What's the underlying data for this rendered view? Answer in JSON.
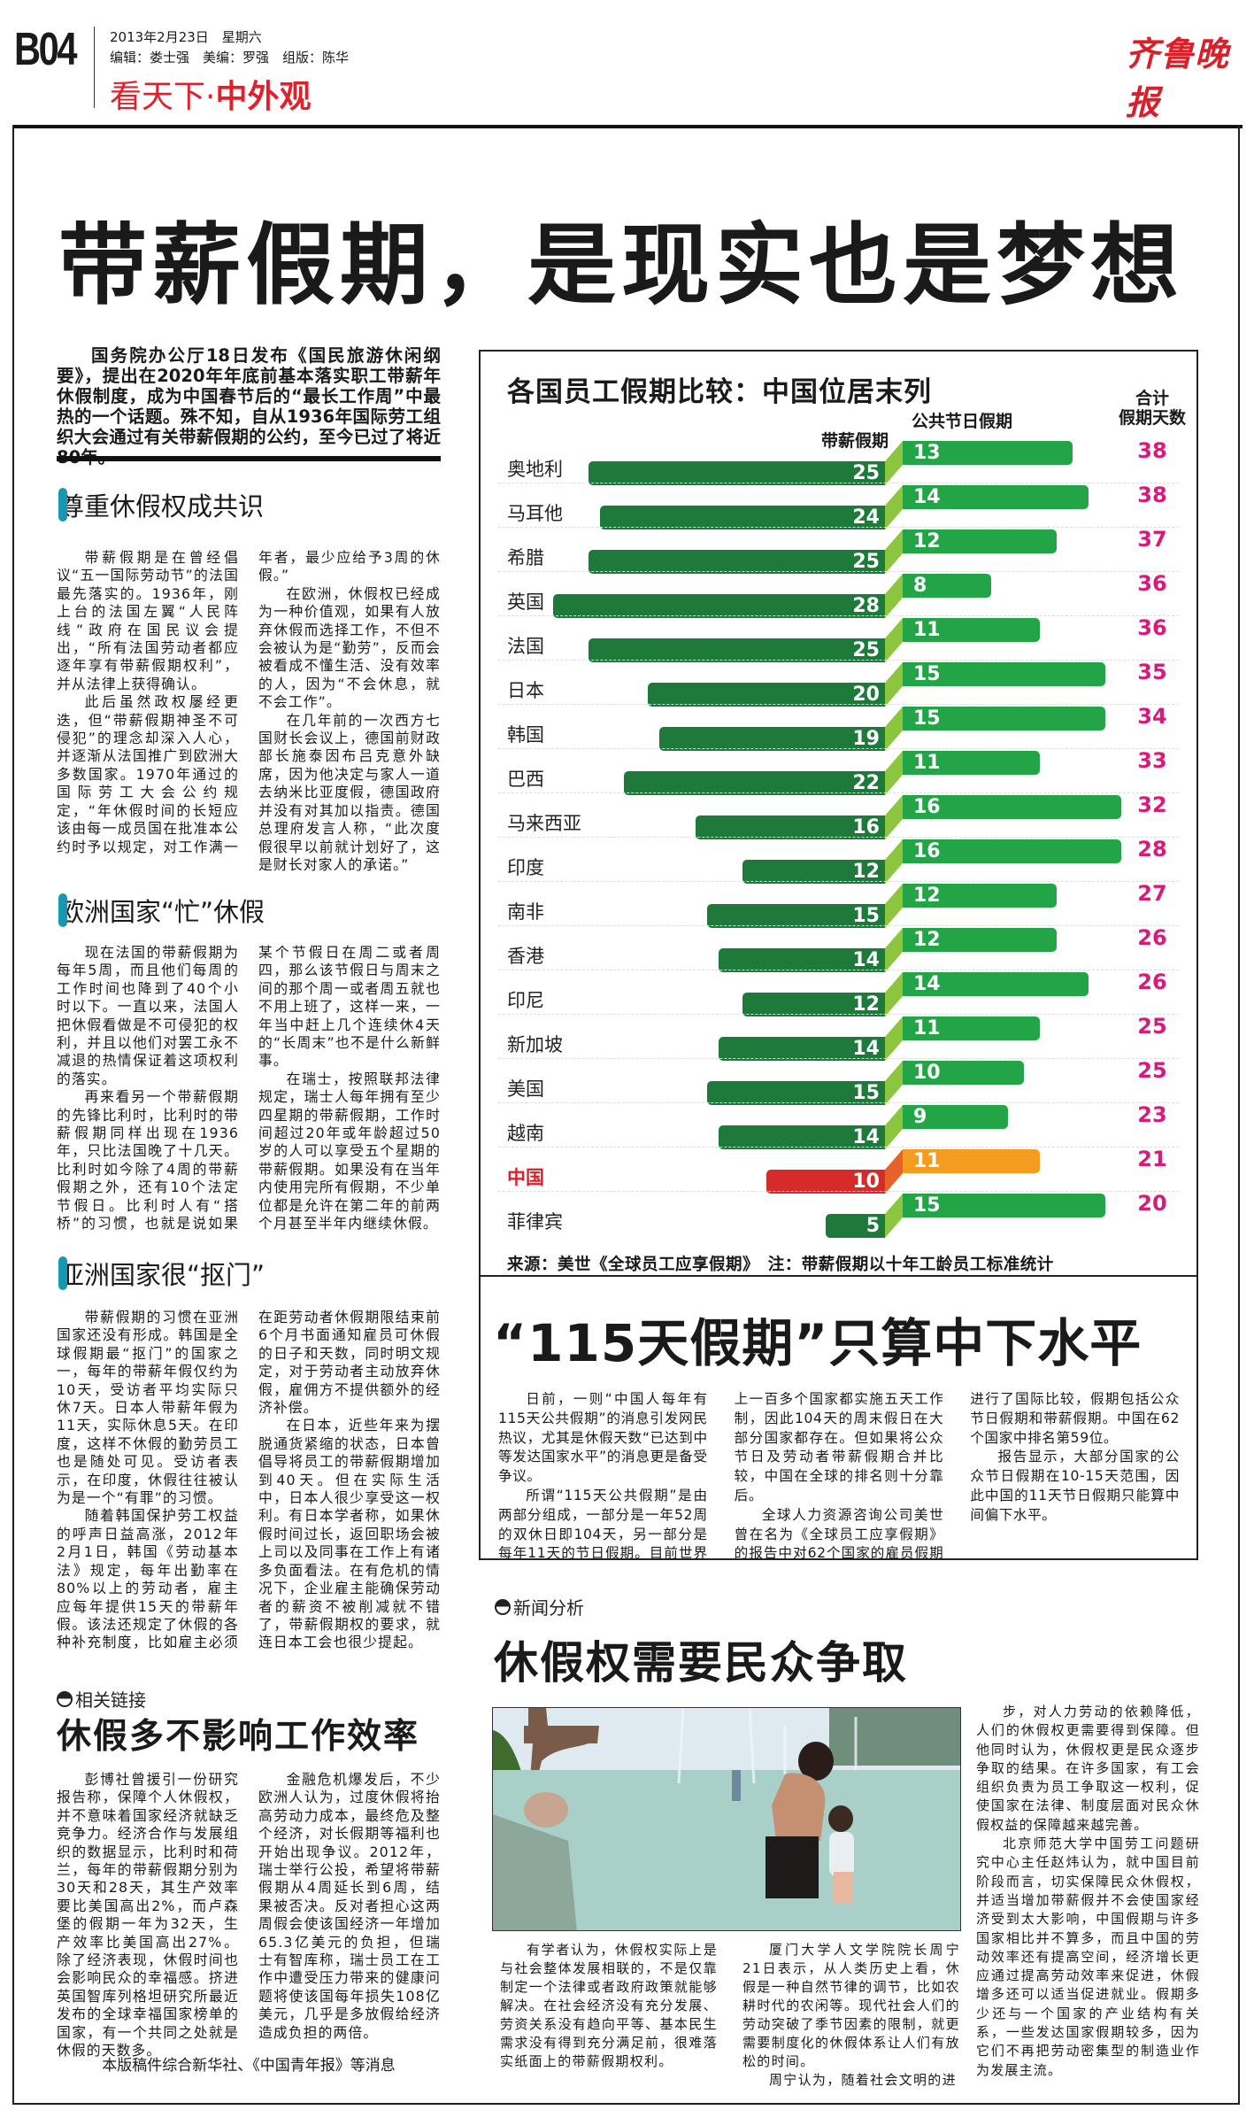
{
  "header": {
    "page_number": "B04",
    "date": "2013年2月23日　星期六",
    "staff": "编辑：娄士强　美编：罗强　组版：陈华",
    "section_plain": "看天下·",
    "section_bold": "中外观",
    "logo": "齐鲁晚报"
  },
  "headline": "带薪假期，是现实也是梦想",
  "lead": "国务院办公厅18日发布《国民旅游休闲纲要》，提出在2020年年底前基本落实职工带薪年休假制度，成为中国春节后的“最长工作周”中最热的一个话题。殊不知，自从1936年国际劳工组织大会通过有关带薪假期的公约，至今已过了将近80年。",
  "sections": [
    {
      "title": "尊重休假权成共识",
      "paragraphs": [
        "带薪假期是在曾经倡议“五一国际劳动节”的法国最先落实的。1936年，刚上台的法国左翼“人民阵线”政府在国民议会提出，“所有法国劳动者都应逐年享有带薪假期权利”，并从法律上获得确认。",
        "此后虽然政权屡经更迭，但“带薪假期神圣不可侵犯”的理念却深入人心，并逐渐从法国推广到欧洲大多数国家。1970年通过的国际劳工大会公约规定，“年休假时间的长短应该由每一成员国在批准本公约时予以规定，对工作满一年者，最少应给予3周的休假。”",
        "在欧洲，休假权已经成为一种价值观，如果有人放弃休假而选择工作，不但不会被认为是“勤劳”，反而会被看成不懂生活、没有效率的人，因为“不会休息，就不会工作”。",
        "在几年前的一次西方七国财长会议上，德国前财政部长施泰因布吕克意外缺席，因为他决定与家人一道去纳米比亚度假，德国政府并没有对其加以指责。德国总理府发言人称，“此次度假很早以前就计划好了，这是财长对家人的承诺。”"
      ]
    },
    {
      "title": "欧洲国家“忙”休假",
      "paragraphs": [
        "现在法国的带薪假期为每年5周，而且他们每周的工作时间也降到了40个小时以下。一直以来，法国人把休假看做是不可侵犯的权利，并且以他们对罢工永不减退的热情保证着这项权利的落实。",
        "再来看另一个带薪假期的先锋比利时，比利时的带薪假期同样出现在1936年，只比法国晚了十几天。比利时如今除了4周的带薪假期之外，还有10个法定节假日。比利时人有“搭桥”的习惯，也就是说如果某个节假日在周二或者周四，那么该节假日与周末之间的那个周一或者周五就也不用上班了，这样一来，一年当中赶上几个连续休4天的“长周末”也不是什么新鲜事。",
        "在瑞士，按照联邦法律规定，瑞士人每年拥有至少四星期的带薪假期，工作时间超过20年或年龄超过50岁的人可以享受五个星期的带薪假期。如果没有在当年内使用完所有假期，不少单位都是允许在第二年的前两个月甚至半年内继续休假。"
      ]
    },
    {
      "title": "亚洲国家很“抠门”",
      "paragraphs": [
        "带薪假期的习惯在亚洲国家还没有形成。韩国是全球假期最“抠门”的国家之一，每年的带薪年假仅约为10天，受访者平均实际只休7天。日本人带薪年假为11天，实际休息5天。在印度，这样不休假的勤劳员工也是随处可见。受访者表示，在印度，休假往往被认为是一个“有罪”的习惯。",
        "随着韩国保护劳工权益的呼声日益高涨，2012年2月1日，韩国《劳动基本法》规定，每年出勤率在80%以上的劳动者，雇主应每年提供15天的带薪年假。该法还规定了休假的各种补充制度，比如雇主必须在距劳动者休假期限结束前6个月书面通知雇员可休假的日子和天数，同时明文规定，对于劳动者主动放弃休假，雇佣方不提供额外的经济补偿。",
        "在日本，近些年来为摆脱通货紧缩的状态，日本曾倡导将员工的带薪假期增加到40天。但在实际生活中，日本人很少享受这一权利。有日本学者称，如果休假时间过长，返回职场会被上司以及同事在工作上有诸多负面看法。在有危机的情况下，企业雇主能确保劳动者的薪资不被削减就不错了，带薪假期权的要求，就连日本工会也很少提起。"
      ]
    }
  ],
  "related": {
    "tag": "相关链接",
    "title": "休假多不影响工作效率",
    "paragraphs": [
      "彭博社曾援引一份研究报告称，保障个人休假权，并不意味着国家经济就缺乏竞争力。经济合作与发展组织的数据显示，比利时和荷兰，每年的带薪假期分别为30天和28天，其生产效率要比美国高出2%，而卢森堡的假期一年为32天，生产效率比美国高出27%。除了经济表现，休假时间也会影响民众的幸福感。挤进英国智库列格坦研究所最近发布的全球幸福国家榜单的国家，有一个共同之处就是休假的天数多。",
      "金融危机爆发后，不少欧洲人认为，过度休假将抬高劳动力成本，最终危及整个经济，对长假期等福利也开始出现争议。2012年，瑞士举行公投，希望将带薪假期从4周延长到6周，结果被否决。反对者担心这两周假会使该国经济一年增加65.3亿美元的负担，但瑞士有智库称，瑞士员工在工作中遭受压力带来的健康问题将使该国每年损失108亿美元，几乎是多放假给经济造成负担的两倍。"
    ],
    "credit": "本版稿件综合新华社、《中国青年报》等消息"
  },
  "chart_data": {
    "type": "bar",
    "title": "各国员工假期比较：中国位居末列",
    "series_labels": {
      "paid": "带薪假期",
      "public": "公共节日假期",
      "total_line1": "合计",
      "total_line2": "假期天数"
    },
    "categories": [
      "奥地利",
      "马耳他",
      "希腊",
      "英国",
      "法国",
      "日本",
      "韩国",
      "巴西",
      "马来西亚",
      "印度",
      "南非",
      "香港",
      "印尼",
      "新加坡",
      "美国",
      "越南",
      "中国",
      "菲律宾"
    ],
    "series": [
      {
        "name": "带薪假期",
        "values": [
          25,
          24,
          25,
          28,
          25,
          20,
          19,
          22,
          16,
          12,
          15,
          14,
          12,
          14,
          15,
          14,
          10,
          5
        ]
      },
      {
        "name": "公共节日假期",
        "values": [
          13,
          14,
          12,
          8,
          11,
          15,
          15,
          11,
          16,
          16,
          12,
          12,
          14,
          11,
          10,
          9,
          11,
          15
        ]
      },
      {
        "name": "合计假期天数",
        "values": [
          38,
          38,
          37,
          36,
          36,
          35,
          34,
          33,
          32,
          28,
          27,
          26,
          26,
          25,
          25,
          23,
          21,
          20
        ]
      }
    ],
    "highlight": "中国",
    "colors": {
      "paid": "#1d7a3a",
      "public": "#22a447",
      "connector": "#8cc63f",
      "total": "#d81b7a",
      "highlight_paid": "#d52b2b",
      "highlight_public": "#f39c1f",
      "highlight_label": "#d8202a"
    },
    "source": "来源：美世《全球员工应享假期》　注：带薪假期以十年工龄员工标准统计"
  },
  "article115": {
    "title": "“115天假期”只算中下水平",
    "paragraphs": [
      "日前，一则“中国人每年有115天公共假期”的消息引发网民热议，尤其是休假天数“已达到中等发达国家水平”的消息更是备受争议。",
      "所谓“115天公共假期”是由两部分组成，一部分是一年52周的双休日即104天，另一部分是每年11天的节日假期。目前世界上一百多个国家都实施五天工作制，因此104天的周末假日在大部分国家都存在。但如果将公众节日及劳动者带薪假期合并比较，中国在全球的排名则十分靠后。",
      "全球人力资源咨询公司美世曾在名为《全球员工应享假期》的报告中对62个国家的雇员假期进行了国际比较，假期包括公众节日假期和带薪假期。中国在62个国家中排名第59位。",
      "报告显示，大部分国家的公众节日假期在10-15天范围，因此中国的11天节日假期只能算中间偏下水平。"
    ]
  },
  "analysis": {
    "tag": "新闻分析",
    "title": "休假权需要民众争取",
    "bottom_paragraphs": [
      "有学者认为，休假权实际上是与社会整体发展相联的，不是仅靠制定一个法律或者政府政策就能够解决。在社会经济没有充分发展、劳资关系没有趋向平等、基本民生需求没有得到充分满足前，很难落实纸面上的带薪假期权利。",
      "厦门大学人文学院院长周宁21日表示，从人类历史上看，休假是一种自然节律的调节，比如农耕时代的农闲等。现代社会人们的劳动突破了季节因素的限制，就更需要制度化的休假体系让人们有放松的时间。",
      "周宁认为，随着社会文明的进"
    ],
    "right_paragraphs": [
      "步，对人力劳动的依赖降低，人们的休假权更需要得到保障。但他同时认为，休假权更是民众逐步争取的结果。在许多国家，有工会组织负责为员工争取这一权利，促使国家在法律、制度层面对民众休假权益的保障越来越完善。",
      "北京师范大学中国劳工问题研究中心主任赵炜认为，就中国目前阶段而言，切实保障民众休假权，并适当增加带薪假并不会使国家经济受到太大影响，中国假期与许多国家相比并不算多，而且中国的劳动效率还有提高空间，经济增长更应通过提高劳动效率来促进，休假增多还可以适当促进就业。假期多少还与一个国家的产业结构有关系，一些发达国家假期较多，因为它们不再把劳动密集型的制造业作为发展主流。"
    ]
  }
}
